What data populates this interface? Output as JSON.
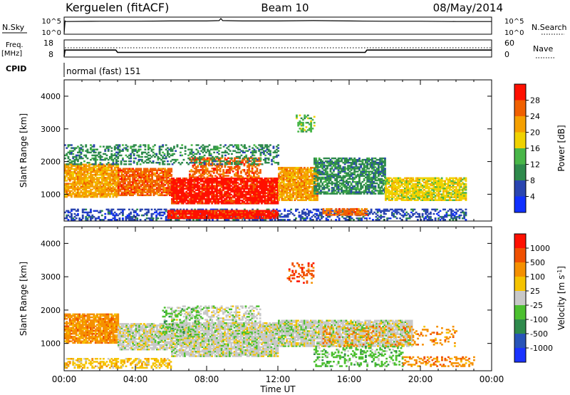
{
  "header": {
    "station": "Kerguelen (fitACF)",
    "beam": "Beam 10",
    "date": "08/May/2014"
  },
  "status_panels": {
    "nsky_label": "N.Sky",
    "nsearch_label": "N.Search",
    "noise_left_ticks": [
      "10^5",
      "10^0"
    ],
    "noise_right_ticks": [
      "10^5",
      "10^0"
    ],
    "freq_label_lines": [
      "Freq.",
      "[MHz]"
    ],
    "freq_ticks": [
      "18",
      "8"
    ],
    "nave_label": "Nave",
    "nave_ticks": [
      "60",
      "0"
    ],
    "cpid_label": "CPID",
    "cpid_text": "normal (fast) 151"
  },
  "colors": {
    "power": [
      "#1030ff",
      "#2a45b0",
      "#2e8a4c",
      "#48b648",
      "#f0d200",
      "#f5a000",
      "#f06000",
      "#ff1000"
    ],
    "velocity": [
      "#1a33ff",
      "#2854b8",
      "#2e8a4c",
      "#4cc030",
      "#c8c8c8",
      "#f5c300",
      "#f59000",
      "#f05000",
      "#ff1000"
    ]
  },
  "chart_data": [
    {
      "type": "line",
      "name": "noise",
      "ylim_log10": [
        0,
        5
      ],
      "x_hours": [
        0,
        0.05,
        0.1,
        2,
        4,
        6,
        8,
        8.7,
        8.8,
        8.9,
        10,
        12,
        14,
        16,
        18,
        20,
        22,
        24
      ],
      "series": [
        {
          "name": "N.Sky",
          "log10_values": [
            0,
            4.2,
            4.0,
            4.1,
            4.1,
            4.2,
            4.2,
            4.3,
            5.0,
            4.3,
            4.2,
            4.2,
            4.3,
            4.2,
            4.1,
            4.1,
            4.0,
            4.0
          ]
        }
      ]
    },
    {
      "type": "line",
      "name": "frequency",
      "ylim": [
        8,
        18
      ],
      "x_hours": [
        0,
        0.05,
        0.1,
        2.9,
        3.0,
        16.9,
        17.0,
        24
      ],
      "series": [
        {
          "name": "Freq.",
          "values": [
            8,
            12,
            12,
            12,
            10.5,
            10.5,
            12,
            12
          ]
        }
      ]
    },
    {
      "type": "heatmap",
      "title": "",
      "xlabel": "Time UT",
      "ylabel": "Slant Range [km]",
      "colorbar_label": "Power [dB]",
      "colorbar_ticks": [
        "28",
        "24",
        "20",
        "16",
        "12",
        "8",
        "4"
      ],
      "x_ticks": [
        "00:00",
        "04:00",
        "08:00",
        "12:00",
        "16:00",
        "20:00",
        "00:00"
      ],
      "y_ticks": [
        "4000",
        "3000",
        "2000",
        "1000"
      ],
      "xlim_hours": [
        0,
        24
      ],
      "ylim_km": [
        180,
        4500
      ],
      "regions": [
        {
          "t0": 0.0,
          "t1": 22.5,
          "r0": 200,
          "r1": 560,
          "level": 1,
          "density": 0.45
        },
        {
          "t0": 0.0,
          "t1": 3.0,
          "r0": 900,
          "r1": 1900,
          "level": 5,
          "density": 0.85
        },
        {
          "t0": 3.0,
          "t1": 6.0,
          "r0": 950,
          "r1": 1800,
          "level": 6,
          "density": 0.85
        },
        {
          "t0": 5.8,
          "t1": 12.0,
          "r0": 250,
          "r1": 520,
          "level": 7,
          "density": 0.95
        },
        {
          "t0": 6.0,
          "t1": 12.0,
          "r0": 700,
          "r1": 1500,
          "level": 7,
          "density": 0.9
        },
        {
          "t0": 7.0,
          "t1": 11.0,
          "r0": 1500,
          "r1": 2100,
          "level": 6,
          "density": 0.55
        },
        {
          "t0": 12.0,
          "t1": 14.2,
          "r0": 800,
          "r1": 1800,
          "level": 5,
          "density": 0.85
        },
        {
          "t0": 13.0,
          "t1": 14.0,
          "r0": 2900,
          "r1": 3400,
          "level": 3,
          "density": 0.35
        },
        {
          "t0": 14.5,
          "t1": 17.0,
          "r0": 350,
          "r1": 550,
          "level": 6,
          "density": 0.75
        },
        {
          "t0": 14.0,
          "t1": 18.0,
          "r0": 1000,
          "r1": 2100,
          "level": 2,
          "density": 0.7
        },
        {
          "t0": 18.0,
          "t1": 22.5,
          "r0": 800,
          "r1": 1500,
          "level": 4,
          "density": 0.8
        },
        {
          "t0": 0.0,
          "t1": 12.0,
          "r0": 1900,
          "r1": 2500,
          "level": 2,
          "density": 0.35
        }
      ]
    },
    {
      "type": "heatmap",
      "title": "",
      "xlabel": "Time UT",
      "ylabel": "Slant Range [km]",
      "colorbar_label": "Velocity [m s^-1]",
      "colorbar_ticks": [
        "1000",
        "500",
        "100",
        "25",
        "-25",
        "-100",
        "-500",
        "-1000"
      ],
      "x_ticks": [
        "00:00",
        "04:00",
        "08:00",
        "12:00",
        "16:00",
        "20:00",
        "00:00"
      ],
      "y_ticks": [
        "4000",
        "3000",
        "2000",
        "1000"
      ],
      "xlim_hours": [
        0,
        24
      ],
      "ylim_km": [
        180,
        4500
      ],
      "regions": [
        {
          "t0": 0.0,
          "t1": 3.0,
          "r0": 1000,
          "r1": 1900,
          "level": 6,
          "density": 0.85
        },
        {
          "t0": 0.0,
          "t1": 6.0,
          "r0": 250,
          "r1": 550,
          "level": 5,
          "density": 0.5
        },
        {
          "t0": 3.0,
          "t1": 6.0,
          "r0": 800,
          "r1": 1600,
          "level": 4,
          "density": 0.8
        },
        {
          "t0": 6.0,
          "t1": 12.0,
          "r0": 600,
          "r1": 1600,
          "level": 4,
          "density": 0.85
        },
        {
          "t0": 6.0,
          "t1": 11.0,
          "r0": 1600,
          "r1": 2100,
          "level": 4,
          "density": 0.4
        },
        {
          "t0": 5.5,
          "t1": 7.5,
          "r0": 1200,
          "r1": 2100,
          "level": 3,
          "density": 0.2
        },
        {
          "t0": 12.0,
          "t1": 19.5,
          "r0": 900,
          "r1": 1700,
          "level": 4,
          "density": 0.85
        },
        {
          "t0": 12.5,
          "t1": 14.0,
          "r0": 2800,
          "r1": 3400,
          "level": 7,
          "density": 0.3
        },
        {
          "t0": 14.0,
          "t1": 19.0,
          "r0": 300,
          "r1": 900,
          "level": 3,
          "density": 0.3
        },
        {
          "t0": 19.0,
          "t1": 23.0,
          "r0": 300,
          "r1": 600,
          "level": 6,
          "density": 0.35
        },
        {
          "t0": 14.5,
          "t1": 22.0,
          "r0": 900,
          "r1": 1500,
          "level": 6,
          "density": 0.2
        }
      ]
    }
  ],
  "axes": {
    "time_label": "Time UT"
  }
}
